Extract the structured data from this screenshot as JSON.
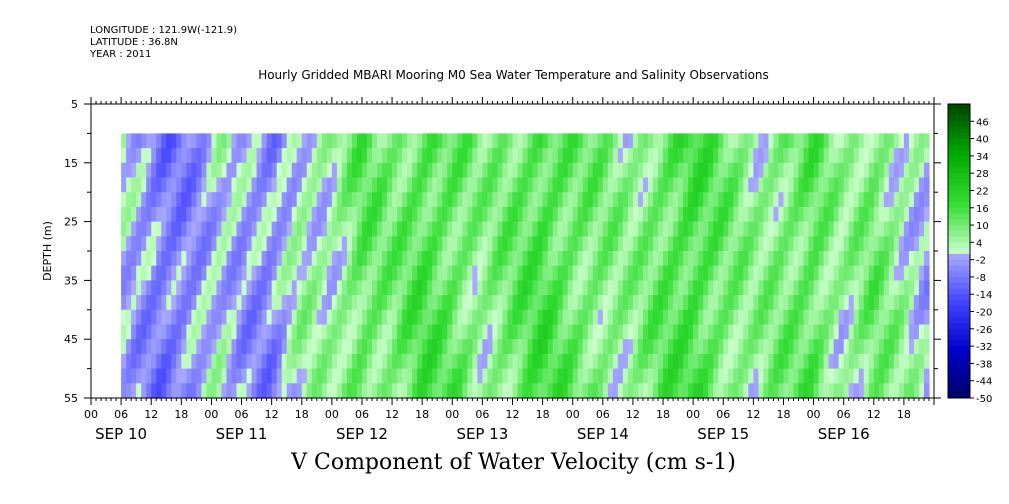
{
  "header": {
    "longitude": "LONGITUDE : 121.9W(-121.9)",
    "latitude": "LATITUDE : 36.8N",
    "year": "YEAR : 2011"
  },
  "chart_data": {
    "type": "heatmap",
    "title": "Hourly Gridded MBARI Mooring M0 Sea Water Temperature and Salinity Observations",
    "caption": "V Component of Water Velocity (cm s-1)",
    "ylabel": "DEPTH (m)",
    "y_reversed": true,
    "ylim": [
      5,
      55
    ],
    "y_ticks": [
      5,
      15,
      25,
      35,
      45,
      55
    ],
    "data_depth_range": [
      10,
      55
    ],
    "x_hour_ticks": [
      "00",
      "06",
      "12",
      "18",
      "00",
      "06",
      "12",
      "18",
      "00",
      "06",
      "12",
      "18",
      "00",
      "06",
      "12",
      "18",
      "00",
      "06",
      "12",
      "18",
      "00",
      "06",
      "12",
      "18",
      "00",
      "06",
      "12",
      "18"
    ],
    "x_day_labels": [
      "SEP 10",
      "SEP 11",
      "SEP 12",
      "SEP 13",
      "SEP 14",
      "SEP 15",
      "SEP 16"
    ],
    "x_range_hours": [
      0,
      168
    ],
    "data_time_range_hours": [
      6,
      167
    ],
    "colorbar": {
      "labels": [
        "46",
        "40",
        "34",
        "28",
        "22",
        "16",
        "10",
        "4",
        "-2",
        "-8",
        "-14",
        "-20",
        "-26",
        "-32",
        "-38",
        "-44",
        "-50"
      ],
      "min": -50,
      "max": 52,
      "step": 2,
      "negative_colors": [
        "#000066",
        "#0000cc",
        "#4444ff",
        "#aaaaff"
      ],
      "positive_colors": [
        "#ccffcc",
        "#33dd33",
        "#00aa00",
        "#004400"
      ]
    },
    "time_pattern_hours": [
      6,
      10,
      14,
      18,
      22,
      26,
      30,
      36,
      42,
      48,
      54,
      60,
      66,
      72,
      78,
      84,
      90,
      96,
      102,
      108,
      114,
      120,
      126,
      132,
      138,
      144,
      150,
      156,
      162,
      167
    ],
    "v_mean_by_time": [
      1,
      -4,
      -8,
      -7,
      -3,
      2,
      -3,
      -6,
      4,
      3,
      12,
      8,
      14,
      12,
      6,
      10,
      15,
      11,
      8,
      5,
      12,
      16,
      10,
      5,
      9,
      13,
      3,
      10,
      4,
      -1
    ]
  }
}
